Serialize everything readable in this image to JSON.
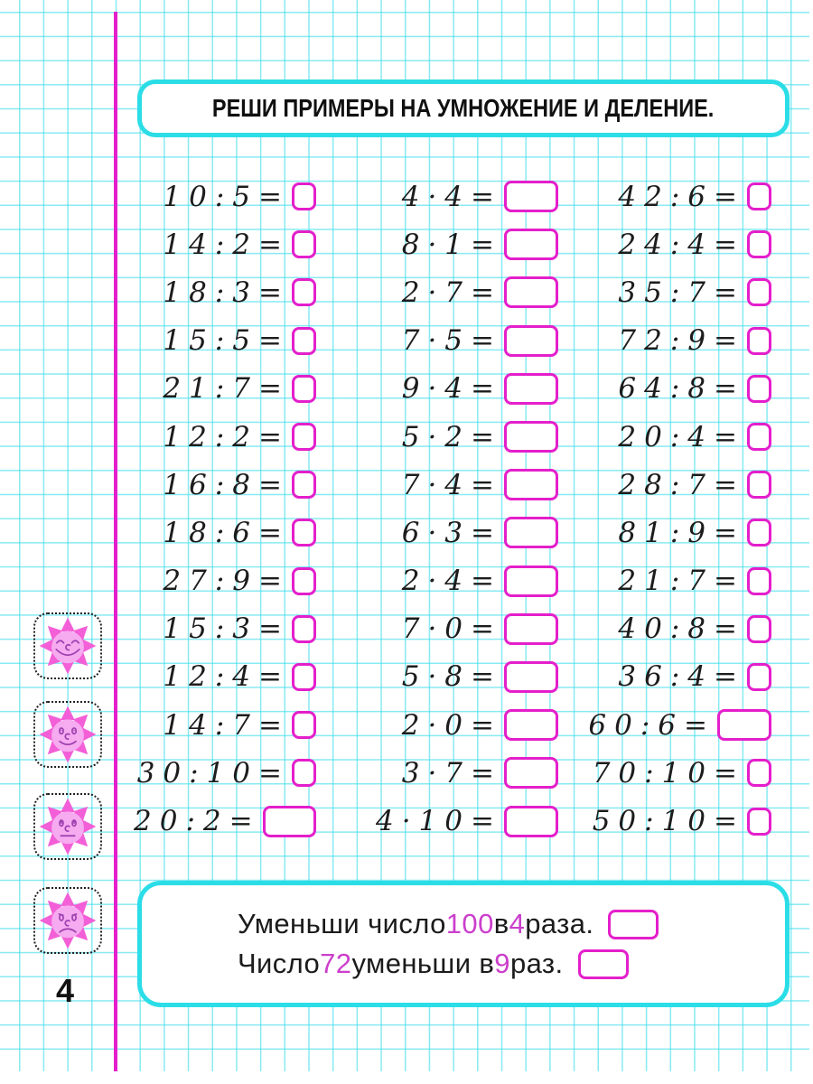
{
  "title": "РЕШИ ПРИМЕРЫ НА УМНОЖЕНИЕ И ДЕЛЕНИЕ.",
  "page_number": "4",
  "colors": {
    "accent_cyan": "#2bdde6",
    "grid_cyan": "#46deeb",
    "magenta": "#e41fcb",
    "text_magenta": "#cc3ecc",
    "sun_petal": "#f35fd7",
    "sun_face": "#f6aaf0",
    "sun_features": "#9c3fae"
  },
  "columns": [
    {
      "problems": [
        {
          "a": "10",
          "op": ":",
          "b": "5",
          "wide": false
        },
        {
          "a": "14",
          "op": ":",
          "b": "2",
          "wide": false
        },
        {
          "a": "18",
          "op": ":",
          "b": "3",
          "wide": false
        },
        {
          "a": "15",
          "op": ":",
          "b": "5",
          "wide": false
        },
        {
          "a": "21",
          "op": ":",
          "b": "7",
          "wide": false
        },
        {
          "a": "12",
          "op": ":",
          "b": "2",
          "wide": false
        },
        {
          "a": "16",
          "op": ":",
          "b": "8",
          "wide": false
        },
        {
          "a": "18",
          "op": ":",
          "b": "6",
          "wide": false
        },
        {
          "a": "27",
          "op": ":",
          "b": "9",
          "wide": false
        },
        {
          "a": "15",
          "op": ":",
          "b": "3",
          "wide": false
        },
        {
          "a": "12",
          "op": ":",
          "b": "4",
          "wide": false
        },
        {
          "a": "14",
          "op": ":",
          "b": "7",
          "wide": false
        },
        {
          "a": "30",
          "op": ":",
          "b": "10",
          "wide": false
        },
        {
          "a": "20",
          "op": ":",
          "b": "2",
          "wide": true
        }
      ]
    },
    {
      "problems": [
        {
          "a": "4",
          "op": "·",
          "b": "4",
          "wide": true
        },
        {
          "a": "8",
          "op": "·",
          "b": "1",
          "wide": true
        },
        {
          "a": "2",
          "op": "·",
          "b": "7",
          "wide": true
        },
        {
          "a": "7",
          "op": "·",
          "b": "5",
          "wide": true
        },
        {
          "a": "9",
          "op": "·",
          "b": "4",
          "wide": true
        },
        {
          "a": "5",
          "op": "·",
          "b": "2",
          "wide": true
        },
        {
          "a": "7",
          "op": "·",
          "b": "4",
          "wide": true
        },
        {
          "a": "6",
          "op": "·",
          "b": "3",
          "wide": true
        },
        {
          "a": "2",
          "op": "·",
          "b": "4",
          "wide": true
        },
        {
          "a": "7",
          "op": "·",
          "b": "0",
          "wide": true
        },
        {
          "a": "5",
          "op": "·",
          "b": "8",
          "wide": true
        },
        {
          "a": "2",
          "op": "·",
          "b": "0",
          "wide": true
        },
        {
          "a": "3",
          "op": "·",
          "b": "7",
          "wide": true
        },
        {
          "a": "4",
          "op": "·",
          "b": "10",
          "wide": true
        }
      ]
    },
    {
      "problems": [
        {
          "a": "42",
          "op": ":",
          "b": "6",
          "wide": false
        },
        {
          "a": "24",
          "op": ":",
          "b": "4",
          "wide": false
        },
        {
          "a": "35",
          "op": ":",
          "b": "7",
          "wide": false
        },
        {
          "a": "72",
          "op": ":",
          "b": "9",
          "wide": false
        },
        {
          "a": "64",
          "op": ":",
          "b": "8",
          "wide": false
        },
        {
          "a": "20",
          "op": ":",
          "b": "4",
          "wide": false
        },
        {
          "a": "28",
          "op": ":",
          "b": "7",
          "wide": false
        },
        {
          "a": "81",
          "op": ":",
          "b": "9",
          "wide": false
        },
        {
          "a": "21",
          "op": ":",
          "b": "7",
          "wide": false
        },
        {
          "a": "40",
          "op": ":",
          "b": "8",
          "wide": false
        },
        {
          "a": "36",
          "op": ":",
          "b": "4",
          "wide": false
        },
        {
          "a": "60",
          "op": ":",
          "b": "6",
          "wide": true
        },
        {
          "a": "70",
          "op": ":",
          "b": "10",
          "wide": false
        },
        {
          "a": "50",
          "op": ":",
          "b": "10",
          "wide": false
        }
      ]
    }
  ],
  "footer_tasks": [
    {
      "parts": [
        {
          "text": "Уменьши число ",
          "accent": false
        },
        {
          "text": "100",
          "accent": true
        },
        {
          "text": " в ",
          "accent": false
        },
        {
          "text": "4",
          "accent": true
        },
        {
          "text": " раза.",
          "accent": false
        }
      ]
    },
    {
      "parts": [
        {
          "text": "Число ",
          "accent": false
        },
        {
          "text": "72",
          "accent": true
        },
        {
          "text": " уменьши в ",
          "accent": false
        },
        {
          "text": "9",
          "accent": true
        },
        {
          "text": " раз.",
          "accent": false
        }
      ]
    }
  ],
  "mascots": [
    {
      "mood": "very-happy"
    },
    {
      "mood": "happy"
    },
    {
      "mood": "neutral"
    },
    {
      "mood": "sad"
    }
  ]
}
